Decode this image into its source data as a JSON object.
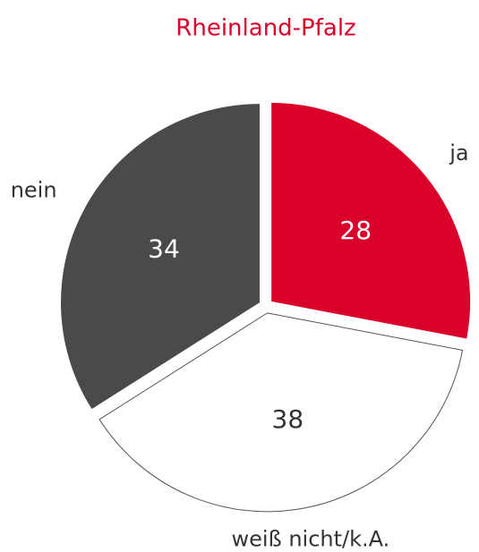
{
  "chart_data": {
    "type": "pie",
    "title": "Rheinland-Pfalz",
    "categories": [
      "ja",
      "weiß nicht/k.A.",
      "nein"
    ],
    "values": [
      28,
      38,
      34
    ],
    "colors": [
      "#d9002a",
      "#ffffff",
      "#4a4a4a"
    ]
  }
}
